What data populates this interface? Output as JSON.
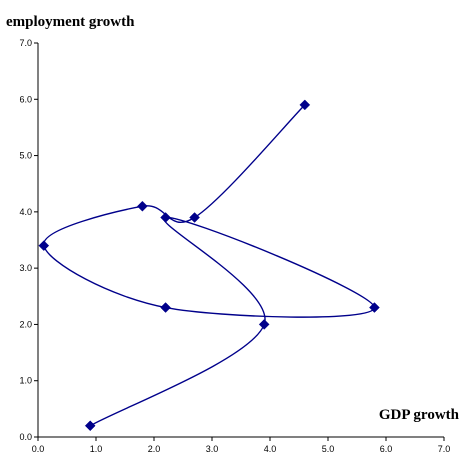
{
  "chart_data": {
    "type": "scatter",
    "title": "",
    "xlabel": "GDP growth",
    "ylabel": "employment growth",
    "xlim": [
      0.0,
      7.0
    ],
    "ylim": [
      0.0,
      7.0
    ],
    "x_ticks": [
      "0.0",
      "1.0",
      "2.0",
      "3.0",
      "4.0",
      "5.0",
      "6.0",
      "7.0"
    ],
    "y_ticks": [
      "0.0",
      "1.0",
      "2.0",
      "3.0",
      "4.0",
      "5.0",
      "6.0",
      "7.0"
    ],
    "grid": false,
    "legend": "none",
    "connected": true,
    "smooth": true,
    "series": [
      {
        "color": "#00008b",
        "marker": "diamond",
        "points": [
          {
            "x": 0.9,
            "y": 0.2
          },
          {
            "x": 3.9,
            "y": 2.0
          },
          {
            "x": 2.2,
            "y": 3.9
          },
          {
            "x": 5.8,
            "y": 2.3
          },
          {
            "x": 2.2,
            "y": 2.3
          },
          {
            "x": 0.1,
            "y": 3.4
          },
          {
            "x": 1.8,
            "y": 4.1
          },
          {
            "x": 2.7,
            "y": 3.9
          },
          {
            "x": 4.6,
            "y": 5.9
          }
        ]
      }
    ]
  }
}
